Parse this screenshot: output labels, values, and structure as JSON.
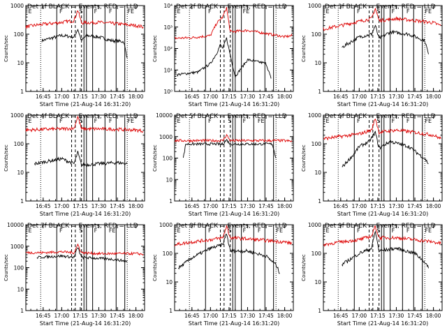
{
  "figure": {
    "background": "#ffffff",
    "events_color": "#000000",
    "lld_color": "#dd0000"
  },
  "chart_data": [
    {
      "type": "line",
      "title": "Det 1f BLACK = Events, RED = LLD",
      "ylabel": "Counts/sec",
      "xlabel": "Start Time (21-Aug-14 16:31:20)",
      "yscale": "log",
      "ylim": [
        1,
        1000
      ],
      "ytick_labels": [
        "1",
        "10",
        "100",
        "1000"
      ],
      "xtick_labels": [
        "16:45",
        "17:00",
        "17:15",
        "17:30",
        "17:45",
        "18:00"
      ],
      "grid": false,
      "marker_labels": [
        "E",
        "F",
        "S",
        "F",
        "F",
        "FE"
      ],
      "series": [
        {
          "name": "Events",
          "x": [
            "16:44",
            "17:00",
            "17:10",
            "17:13",
            "17:16",
            "17:20",
            "17:30",
            "17:40",
            "17:50",
            "17:53"
          ],
          "y": [
            60,
            90,
            80,
            150,
            60,
            90,
            80,
            60,
            55,
            15
          ]
        },
        {
          "name": "LLD",
          "x": [
            "16:31",
            "16:40",
            "17:00",
            "17:10",
            "17:13",
            "17:16",
            "17:30",
            "17:45",
            "18:00",
            "18:06"
          ],
          "y": [
            180,
            210,
            260,
            300,
            700,
            250,
            260,
            230,
            200,
            180
          ]
        }
      ]
    },
    {
      "type": "line",
      "title": "Det 2f BLACK = Events, RED = LLD",
      "ylabel": "Counts/sec",
      "xlabel": "Start Time (21-Aug-14 16:31:20)",
      "yscale": "log",
      "ylim": [
        1,
        10000
      ],
      "ytick_labels": [
        "10⁰",
        "10¹",
        "10²",
        "10³",
        "10⁴"
      ],
      "xtick_labels": [
        "16:45",
        "17:00",
        "17:15",
        "17:30",
        "17:45",
        "18:00"
      ],
      "grid": false,
      "marker_labels": [
        "E",
        "F",
        "F",
        "FE"
      ],
      "series": [
        {
          "name": "Events",
          "x": [
            "16:33",
            "16:50",
            "17:00",
            "17:05",
            "17:08",
            "17:10",
            "17:13",
            "17:16",
            "17:20",
            "17:30",
            "17:45",
            "17:49"
          ],
          "y": [
            6,
            8,
            20,
            60,
            150,
            100,
            300,
            50,
            5,
            30,
            20,
            4
          ]
        },
        {
          "name": "LLD",
          "x": [
            "16:31",
            "16:45",
            "17:00",
            "17:05",
            "17:10",
            "17:13",
            "17:16",
            "17:30",
            "17:45",
            "18:00",
            "18:06"
          ],
          "y": [
            300,
            320,
            400,
            1500,
            3000,
            8000,
            600,
            700,
            500,
            350,
            400
          ]
        }
      ]
    },
    {
      "type": "line",
      "title": "Det 3f BLACK = Events, RED = LLD",
      "ylabel": "Counts/sec",
      "xlabel": "Start Time (21-Aug-14 16:31:20)",
      "yscale": "log",
      "ylim": [
        1,
        1000
      ],
      "ytick_labels": [
        "1",
        "10",
        "100",
        "1000"
      ],
      "xtick_labels": [
        "16:45",
        "17:00",
        "17:15",
        "17:30",
        "17:45",
        "18:00"
      ],
      "grid": false,
      "marker_labels": [
        "E",
        "F",
        "S",
        "F",
        "F",
        "FE"
      ],
      "series": [
        {
          "name": "Events",
          "x": [
            "16:46",
            "17:00",
            "17:10",
            "17:13",
            "17:16",
            "17:25",
            "17:40",
            "17:53",
            "17:56"
          ],
          "y": [
            35,
            80,
            100,
            200,
            70,
            120,
            100,
            60,
            20
          ]
        },
        {
          "name": "LLD",
          "x": [
            "16:31",
            "16:45",
            "17:00",
            "17:10",
            "17:13",
            "17:16",
            "17:30",
            "17:45",
            "18:00",
            "18:06"
          ],
          "y": [
            150,
            200,
            280,
            350,
            800,
            300,
            350,
            300,
            250,
            200
          ]
        }
      ]
    },
    {
      "type": "line",
      "title": "Det 4f BLACK = Events, RED = LLD",
      "ylabel": "Counts/sec",
      "xlabel": "Start Time (21-Aug-14 16:31:20)",
      "yscale": "log",
      "ylim": [
        1,
        1000
      ],
      "ytick_labels": [
        "1",
        "10",
        "100",
        "1000"
      ],
      "xtick_labels": [
        "16:45",
        "17:00",
        "17:15",
        "17:30",
        "17:45",
        "18:00"
      ],
      "grid": false,
      "marker_labels": [
        "E",
        "F",
        "S",
        "F",
        "F",
        "FE"
      ],
      "series": [
        {
          "name": "Events",
          "x": [
            "16:38",
            "16:50",
            "17:00",
            "17:10",
            "17:13",
            "17:16",
            "17:30",
            "17:45",
            "17:53"
          ],
          "y": [
            20,
            25,
            30,
            20,
            50,
            18,
            20,
            22,
            20
          ]
        },
        {
          "name": "LLD",
          "x": [
            "16:31",
            "16:45",
            "17:00",
            "17:10",
            "17:13",
            "17:16",
            "17:30",
            "17:45",
            "18:00",
            "18:06"
          ],
          "y": [
            300,
            320,
            330,
            350,
            900,
            330,
            330,
            320,
            300,
            280
          ]
        }
      ]
    },
    {
      "type": "line",
      "title": "Det 5f BLACK = Events, RED = LLD",
      "ylabel": "Counts/sec",
      "xlabel": "Start Time (21-Aug-14 16:31:20)",
      "yscale": "log",
      "ylim": [
        1,
        10000
      ],
      "ytick_labels": [
        "1",
        "10",
        "100",
        "1000",
        "10000"
      ],
      "xtick_labels": [
        "16:45",
        "17:00",
        "17:15",
        "17:30",
        "17:45",
        "18:00"
      ],
      "grid": false,
      "marker_labels": [
        "E",
        "F",
        "S",
        "F",
        "FE"
      ],
      "series": [
        {
          "name": "Events",
          "x": [
            "16:38",
            "16:40",
            "17:10",
            "17:13",
            "17:16",
            "17:50",
            "17:53"
          ],
          "y": [
            100,
            450,
            450,
            700,
            450,
            450,
            100
          ]
        },
        {
          "name": "LLD",
          "x": [
            "16:31",
            "16:45",
            "17:00",
            "17:10",
            "17:13",
            "17:16",
            "17:30",
            "17:45",
            "18:00",
            "18:06"
          ],
          "y": [
            650,
            650,
            650,
            650,
            1200,
            650,
            650,
            650,
            650,
            600
          ]
        }
      ]
    },
    {
      "type": "line",
      "title": "Det 6f BLACK = Events, RED = LLD",
      "ylabel": "Counts/sec",
      "xlabel": "Start Time (21-Aug-14 16:31:20)",
      "yscale": "log",
      "ylim": [
        1,
        1000
      ],
      "ytick_labels": [
        "1",
        "10",
        "100",
        "1000"
      ],
      "xtick_labels": [
        "16:45",
        "17:00",
        "17:15",
        "17:30",
        "17:45",
        "18:00"
      ],
      "grid": false,
      "marker_labels": [
        "E",
        "F",
        "S",
        "F",
        "F",
        "FE"
      ],
      "series": [
        {
          "name": "Events",
          "x": [
            "16:46",
            "16:55",
            "17:00",
            "17:08",
            "17:13",
            "17:16",
            "17:25",
            "17:40",
            "17:53",
            "17:56"
          ],
          "y": [
            15,
            40,
            80,
            120,
            250,
            70,
            120,
            80,
            30,
            20
          ]
        },
        {
          "name": "LLD",
          "x": [
            "16:31",
            "16:45",
            "17:00",
            "17:10",
            "17:13",
            "17:16",
            "17:30",
            "17:45",
            "18:00",
            "18:06"
          ],
          "y": [
            150,
            180,
            220,
            300,
            800,
            250,
            300,
            250,
            200,
            150
          ]
        }
      ]
    },
    {
      "type": "line",
      "title": "Det 7f BLACK = Events, RED = LLD",
      "ylabel": "Counts/sec",
      "xlabel": "Start Time (21-Aug-14 16:31:20)",
      "yscale": "log",
      "ylim": [
        1,
        10000
      ],
      "ytick_labels": [
        "1",
        "10",
        "100",
        "1000",
        "10000"
      ],
      "xtick_labels": [
        "16:45",
        "17:00",
        "17:15",
        "17:30",
        "17:45",
        "18:00"
      ],
      "grid": false,
      "marker_labels": [
        "E",
        "F",
        "S",
        "F",
        "FE"
      ],
      "series": [
        {
          "name": "Events",
          "x": [
            "16:40",
            "17:00",
            "17:10",
            "17:13",
            "17:16",
            "17:40",
            "17:53"
          ],
          "y": [
            300,
            350,
            300,
            900,
            300,
            250,
            200
          ]
        },
        {
          "name": "LLD",
          "x": [
            "16:31",
            "16:45",
            "17:00",
            "17:10",
            "17:13",
            "17:16",
            "17:30",
            "17:45",
            "18:00",
            "18:06"
          ],
          "y": [
            500,
            500,
            550,
            500,
            1200,
            500,
            450,
            450,
            450,
            420
          ]
        }
      ]
    },
    {
      "type": "line",
      "title": "Det 8f BLACK = Events, RED = LLD",
      "ylabel": "Counts/sec",
      "xlabel": "Start Time (21-Aug-14 16:31:20)",
      "yscale": "log",
      "ylim": [
        1,
        1000
      ],
      "ytick_labels": [
        "1",
        "10",
        "100",
        "1000"
      ],
      "xtick_labels": [
        "16:45",
        "17:00",
        "17:15",
        "17:30",
        "17:45",
        "18:00"
      ],
      "grid": false,
      "marker_labels": [
        "E",
        "F",
        "S",
        "F",
        "F",
        "FE"
      ],
      "series": [
        {
          "name": "Events",
          "x": [
            "16:34",
            "16:45",
            "17:00",
            "17:10",
            "17:13",
            "17:16",
            "17:30",
            "17:45",
            "17:53",
            "17:56"
          ],
          "y": [
            30,
            70,
            150,
            200,
            500,
            120,
            120,
            80,
            40,
            20
          ]
        },
        {
          "name": "LLD",
          "x": [
            "16:31",
            "16:45",
            "17:00",
            "17:10",
            "17:13",
            "17:16",
            "17:30",
            "17:45",
            "18:00",
            "18:06"
          ],
          "y": [
            200,
            250,
            300,
            350,
            900,
            350,
            320,
            280,
            250,
            220
          ]
        }
      ]
    },
    {
      "type": "line",
      "title": "Det 9f BLACK = Events, RED = LLD",
      "ylabel": "Counts/sec",
      "xlabel": "Start Time (21-Aug-14 16:31:20)",
      "yscale": "log",
      "ylim": [
        1,
        1000
      ],
      "ytick_labels": [
        "1",
        "10",
        "100",
        "1000"
      ],
      "xtick_labels": [
        "16:45",
        "17:00",
        "17:15",
        "17:30",
        "17:45",
        "18:00"
      ],
      "grid": false,
      "marker_labels": [
        "E",
        "F",
        "S",
        "F",
        "F",
        "FE"
      ],
      "series": [
        {
          "name": "Events",
          "x": [
            "16:46",
            "17:00",
            "17:10",
            "17:13",
            "17:16",
            "17:30",
            "17:45",
            "17:53",
            "17:56"
          ],
          "y": [
            40,
            100,
            150,
            600,
            120,
            150,
            100,
            50,
            30
          ]
        },
        {
          "name": "LLD",
          "x": [
            "16:31",
            "16:45",
            "17:00",
            "17:10",
            "17:13",
            "17:16",
            "17:30",
            "17:45",
            "18:00",
            "18:06"
          ],
          "y": [
            200,
            250,
            300,
            400,
            900,
            350,
            350,
            300,
            250,
            220
          ]
        }
      ]
    }
  ]
}
